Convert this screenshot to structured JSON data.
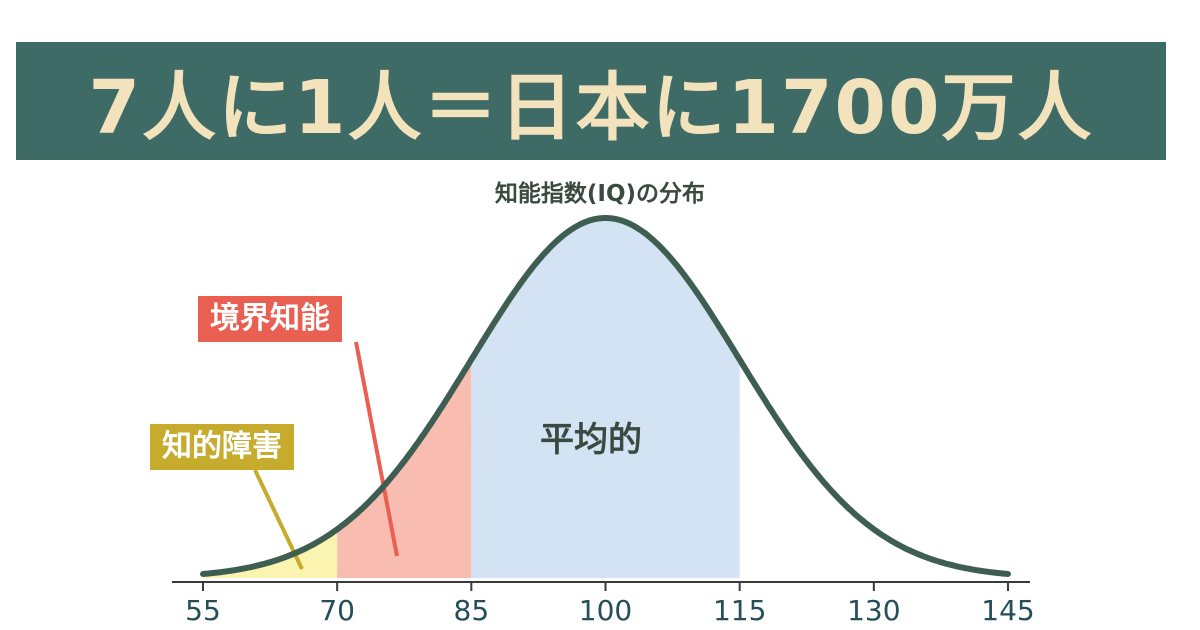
{
  "headline": "7人に1人＝日本に1700万人",
  "colors": {
    "banner_bg": "#3f6b66",
    "banner_text": "#f3e3bd",
    "curve": "#3f5e52",
    "region_disability": "#fbf3b0",
    "region_borderline": "#f9bcb0",
    "region_average": "#d3e3f4",
    "label_borderline": "#e95f52",
    "label_disability": "#c6ab2d"
  },
  "chart_data": {
    "type": "area",
    "title": "知能指数(IQ)の分布",
    "distribution": {
      "mean": 100,
      "sd": 15
    },
    "xlim": [
      55,
      145
    ],
    "x_ticks": [
      "55",
      "70",
      "85",
      "100",
      "115",
      "130",
      "145"
    ],
    "regions": [
      {
        "name": "知的障害",
        "from": 55,
        "to": 70
      },
      {
        "name": "境界知能",
        "from": 70,
        "to": 85
      },
      {
        "name": "平均的",
        "from": 85,
        "to": 115
      }
    ],
    "grid": false
  }
}
